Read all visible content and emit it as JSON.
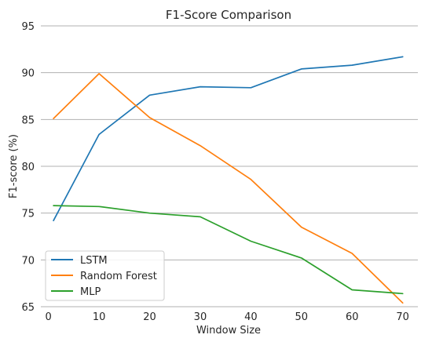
{
  "chart_data": {
    "type": "line",
    "title": "F1-Score Comparison",
    "xlabel": "Window Size",
    "ylabel": "F1-score (%)",
    "x": [
      1,
      10,
      20,
      30,
      40,
      50,
      60,
      70
    ],
    "xticks": [
      0,
      10,
      20,
      30,
      40,
      50,
      60,
      70
    ],
    "yticks": [
      65,
      70,
      75,
      80,
      85,
      90,
      95
    ],
    "xlim": [
      -1.5,
      73
    ],
    "ylim": [
      65,
      95
    ],
    "grid": "horizontal",
    "legend_position": "lower-left",
    "series": [
      {
        "name": "LSTM",
        "color": "#1f77b4",
        "values": [
          74.2,
          83.4,
          87.6,
          88.5,
          88.4,
          90.4,
          90.8,
          91.7
        ]
      },
      {
        "name": "Random Forest",
        "color": "#ff7f0e",
        "values": [
          85.1,
          89.9,
          85.2,
          82.2,
          78.6,
          73.5,
          70.7,
          65.4
        ]
      },
      {
        "name": "MLP",
        "color": "#2ca02c",
        "values": [
          75.8,
          75.7,
          75.0,
          74.6,
          72.0,
          70.2,
          66.8,
          66.4
        ]
      }
    ]
  }
}
